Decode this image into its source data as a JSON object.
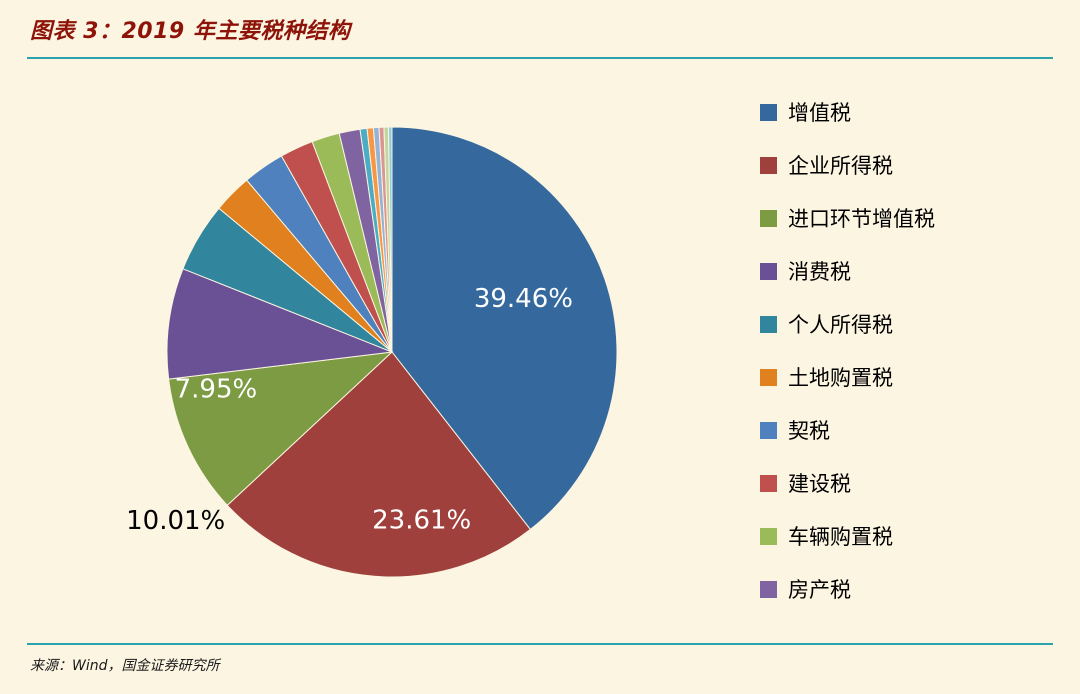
{
  "header": {
    "title": "图表 3：2019 年主要税种结构"
  },
  "footer": {
    "source": "来源：Wind，国金证券研究所"
  },
  "theme": {
    "background": "#FBF5E2",
    "rule_color": "#2AA4AC",
    "title_color": "#8E1309"
  },
  "chart_data": {
    "type": "pie",
    "title": "图表 3：2019 年主要税种结构",
    "source": "来源：Wind，国金证券研究所",
    "legend_position": "right",
    "start_angle_deg": 0,
    "direction": "clockwise",
    "slice_border_color": "#FBF5E2",
    "slices": [
      {
        "label": "增值税",
        "value": 39.46,
        "color": "#35689D",
        "in_legend": true,
        "data_label": {
          "text": "39.46%",
          "placement": "inside",
          "color": "#FFFFFF",
          "angle": 68,
          "r_frac": 0.63
        }
      },
      {
        "label": "企业所得税",
        "value": 23.61,
        "color": "#A0403C",
        "in_legend": true,
        "data_label": {
          "text": "23.61%",
          "placement": "inside",
          "color": "#FFFFFF",
          "angle": 170,
          "r_frac": 0.76
        }
      },
      {
        "label": "进口环节增值税",
        "value": 10.01,
        "color": "#7D9B42",
        "in_legend": true,
        "data_label": {
          "text": "10.01%",
          "placement": "outside",
          "color": "#000000",
          "angle": 232,
          "r_frac": 1.22
        }
      },
      {
        "label": "消费税",
        "value": 7.95,
        "color": "#6A5195",
        "in_legend": true,
        "data_label": {
          "text": "7.95%",
          "placement": "inside",
          "color": "#FFFFFF",
          "angle": 258,
          "r_frac": 0.8
        }
      },
      {
        "label": "个人所得税",
        "value": 5.0,
        "color": "#31859C",
        "in_legend": true
      },
      {
        "label": "土地购置税",
        "value": 2.8,
        "color": "#E0801E",
        "in_legend": true
      },
      {
        "label": "契税",
        "value": 3.0,
        "color": "#4E81BD",
        "in_legend": true
      },
      {
        "label": "建设税",
        "value": 2.4,
        "color": "#C0504D",
        "in_legend": true
      },
      {
        "label": "车辆购置税",
        "value": 2.0,
        "color": "#9BBB59",
        "in_legend": true
      },
      {
        "label": "房产税",
        "value": 1.5,
        "color": "#8064A2",
        "in_legend": true
      },
      {
        "label": "",
        "value": 0.5,
        "color": "#4BACC6",
        "in_legend": false
      },
      {
        "label": "",
        "value": 0.45,
        "color": "#F79646",
        "in_legend": false
      },
      {
        "label": "",
        "value": 0.4,
        "color": "#95B3D7",
        "in_legend": false
      },
      {
        "label": "",
        "value": 0.35,
        "color": "#D99694",
        "in_legend": false
      },
      {
        "label": "",
        "value": 0.32,
        "color": "#C3D69B",
        "in_legend": false
      },
      {
        "label": "",
        "value": 0.25,
        "color": "#92CDDC",
        "in_legend": false
      }
    ]
  }
}
